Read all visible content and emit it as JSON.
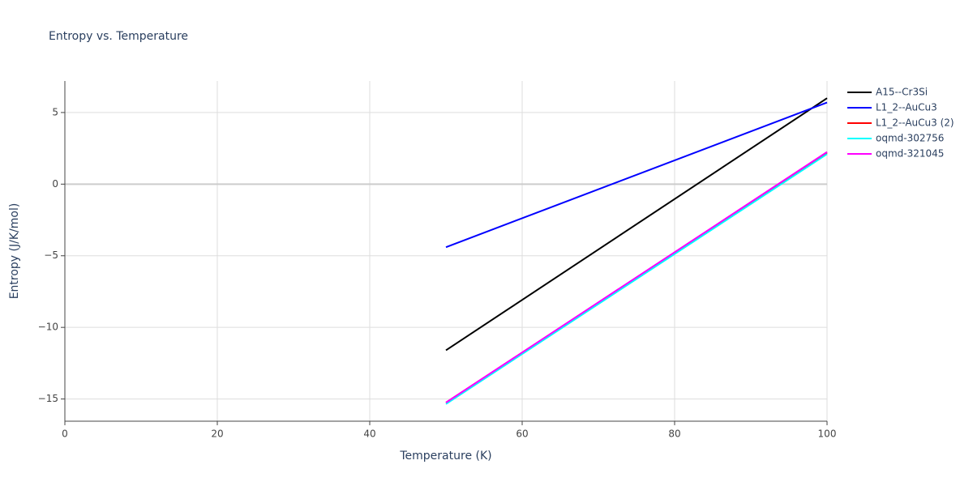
{
  "chart_data": {
    "type": "line",
    "title": "Entropy vs. Temperature",
    "x_label": "Temperature (K)",
    "y_label": "Entropy (J/K/mol)",
    "x": [
      50,
      100
    ],
    "series": [
      {
        "name": "A15--Cr3Si",
        "color": "#000000",
        "values": [
          -11.6,
          6.0
        ]
      },
      {
        "name": "L1_2--AuCu3",
        "color": "#0000ff",
        "values": [
          -4.4,
          5.7
        ]
      },
      {
        "name": "L1_2--AuCu3 (2)",
        "color": "#ff0000",
        "values": [
          -15.25,
          2.2
        ]
      },
      {
        "name": "oqmd-302756",
        "color": "#00ffff",
        "values": [
          -15.35,
          2.1
        ]
      },
      {
        "name": "oqmd-321045",
        "color": "#ff00ff",
        "values": [
          -15.25,
          2.25
        ]
      }
    ],
    "xlim": [
      0,
      100
    ],
    "xticks": [
      0,
      20,
      40,
      60,
      80,
      100
    ],
    "ylim": [
      -16.55,
      7.2
    ],
    "yticks": [
      {
        "value": -15,
        "label": "−15"
      },
      {
        "value": -10,
        "label": "−10"
      },
      {
        "value": -5,
        "label": "−5"
      },
      0,
      5
    ],
    "grid": true,
    "legend": "right"
  }
}
